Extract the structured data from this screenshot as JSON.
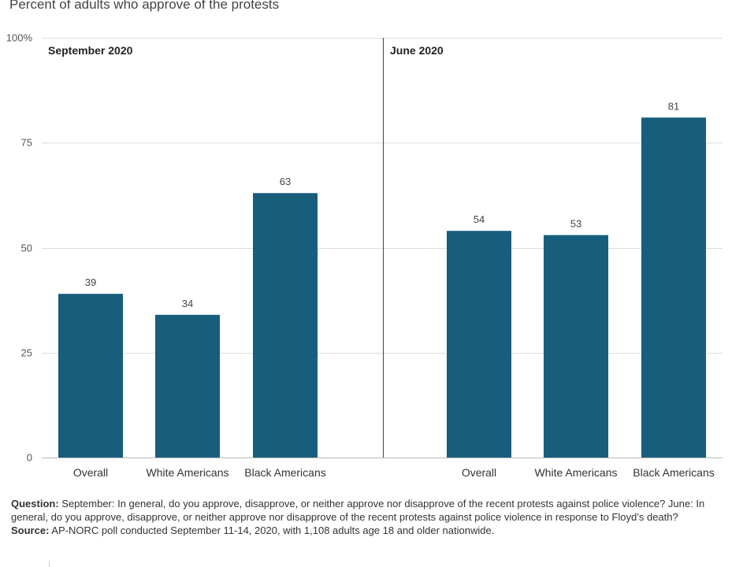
{
  "subtitle": "Percent of adults who approve of the protests",
  "colors": {
    "bar": "#175e7c"
  },
  "chart_data": {
    "type": "bar",
    "ylim": [
      0,
      100
    ],
    "yticks": [
      0,
      25,
      50,
      75,
      100
    ],
    "ytick_labels": [
      "0",
      "25",
      "50",
      "75",
      "100%"
    ],
    "grid": true,
    "panels": [
      {
        "title": "September 2020",
        "categories": [
          "Overall",
          "White Americans",
          "Black Americans"
        ],
        "values": [
          39,
          34,
          63
        ]
      },
      {
        "title": "June 2020",
        "categories": [
          "Overall",
          "White Americans",
          "Black Americans"
        ],
        "values": [
          54,
          53,
          81
        ]
      }
    ]
  },
  "notes": {
    "question_label": "Question:",
    "question_text": " September: In general, do you approve, disapprove, or neither approve nor disapprove of the recent protests against police violence? June: In general, do you approve, disapprove, or neither approve nor disapprove of the recent protests against police violence in response to Floyd’s death?",
    "source_label": "Source:",
    "source_text": " AP-NORC poll conducted September 11-14, 2020, with 1,108 adults age 18 and older nationwide."
  }
}
